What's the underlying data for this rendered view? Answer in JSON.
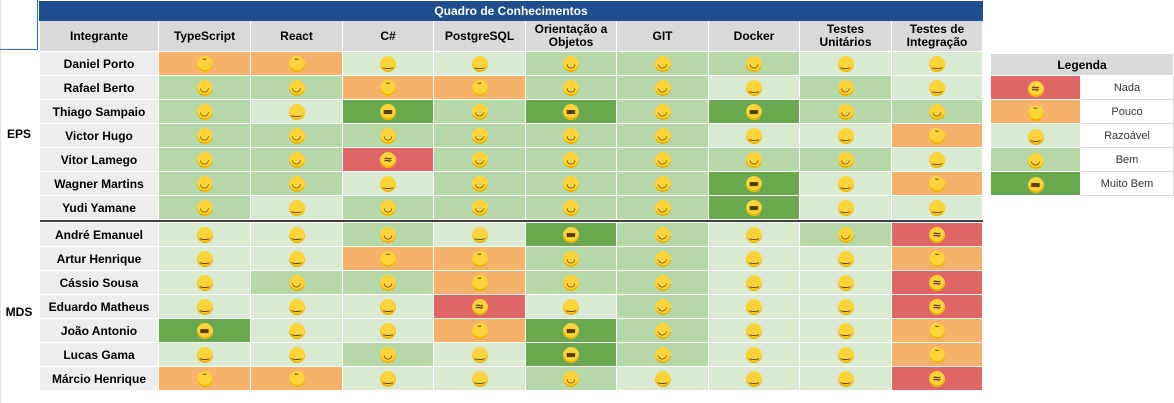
{
  "title": "Quadro de Conhecimentos",
  "header": {
    "member": "Integrante",
    "skills": [
      "TypeScript",
      "React",
      "C#",
      "PostgreSQL",
      "Orientação a Objetos",
      "GIT",
      "Docker",
      "Testes Unitários",
      "Testes de Integração"
    ]
  },
  "icons": {
    "0": {
      "name": "crying-face-icon",
      "glyph": "≈"
    },
    "1": {
      "name": "sad-face-icon",
      "glyph": "˘"
    },
    "2": {
      "name": "upside-down-face-icon",
      "glyph": "‿"
    },
    "3": {
      "name": "grinning-face-icon",
      "glyph": "◡"
    },
    "4": {
      "name": "sunglasses-face-icon",
      "glyph": "▬"
    }
  },
  "colors": {
    "nada": "#e06666",
    "pouco": "#f6b26b",
    "razoavel": "#d9ead3",
    "bem": "#b6d7a8",
    "muito_bem": "#6aa84f",
    "title_bg": "#1f4e8c"
  },
  "groups": [
    {
      "label": "EPS",
      "members": [
        {
          "name": "Daniel Porto",
          "levels": [
            1,
            1,
            2,
            2,
            3,
            3,
            3,
            2,
            2
          ]
        },
        {
          "name": "Rafael Berto",
          "levels": [
            3,
            3,
            1,
            1,
            3,
            3,
            2,
            3,
            2
          ]
        },
        {
          "name": "Thiago Sampaio",
          "levels": [
            3,
            2,
            4,
            3,
            4,
            3,
            4,
            3,
            3
          ]
        },
        {
          "name": "Victor Hugo",
          "levels": [
            3,
            3,
            3,
            3,
            3,
            3,
            2,
            2,
            1
          ]
        },
        {
          "name": "Vitor Lamego",
          "levels": [
            3,
            3,
            0,
            3,
            3,
            3,
            3,
            3,
            2
          ]
        },
        {
          "name": "Wagner Martins",
          "levels": [
            3,
            3,
            2,
            3,
            3,
            3,
            4,
            2,
            1
          ]
        },
        {
          "name": "Yudi Yamane",
          "levels": [
            3,
            2,
            3,
            3,
            3,
            3,
            4,
            2,
            2
          ]
        }
      ]
    },
    {
      "label": "MDS",
      "members": [
        {
          "name": "André Emanuel",
          "levels": [
            2,
            2,
            3,
            2,
            4,
            3,
            2,
            3,
            0
          ]
        },
        {
          "name": "Artur Henrique",
          "levels": [
            2,
            2,
            1,
            1,
            3,
            3,
            2,
            2,
            1
          ]
        },
        {
          "name": "Cássio Sousa",
          "levels": [
            2,
            3,
            3,
            1,
            3,
            3,
            2,
            2,
            0
          ]
        },
        {
          "name": "Eduardo Matheus",
          "levels": [
            2,
            2,
            2,
            0,
            2,
            3,
            2,
            2,
            0
          ]
        },
        {
          "name": "João Antonio",
          "levels": [
            4,
            2,
            2,
            1,
            4,
            3,
            2,
            2,
            1
          ]
        },
        {
          "name": "Lucas Gama",
          "levels": [
            2,
            2,
            3,
            2,
            4,
            3,
            2,
            2,
            1
          ]
        },
        {
          "name": "Márcio Henrique",
          "levels": [
            1,
            1,
            2,
            2,
            3,
            2,
            2,
            2,
            0
          ]
        }
      ]
    }
  ],
  "legend": {
    "title": "Legenda",
    "items": [
      {
        "level": 0,
        "label": "Nada"
      },
      {
        "level": 1,
        "label": "Pouco"
      },
      {
        "level": 2,
        "label": "Razoável"
      },
      {
        "level": 3,
        "label": "Bem"
      },
      {
        "level": 4,
        "label": "Muito Bem"
      }
    ]
  }
}
